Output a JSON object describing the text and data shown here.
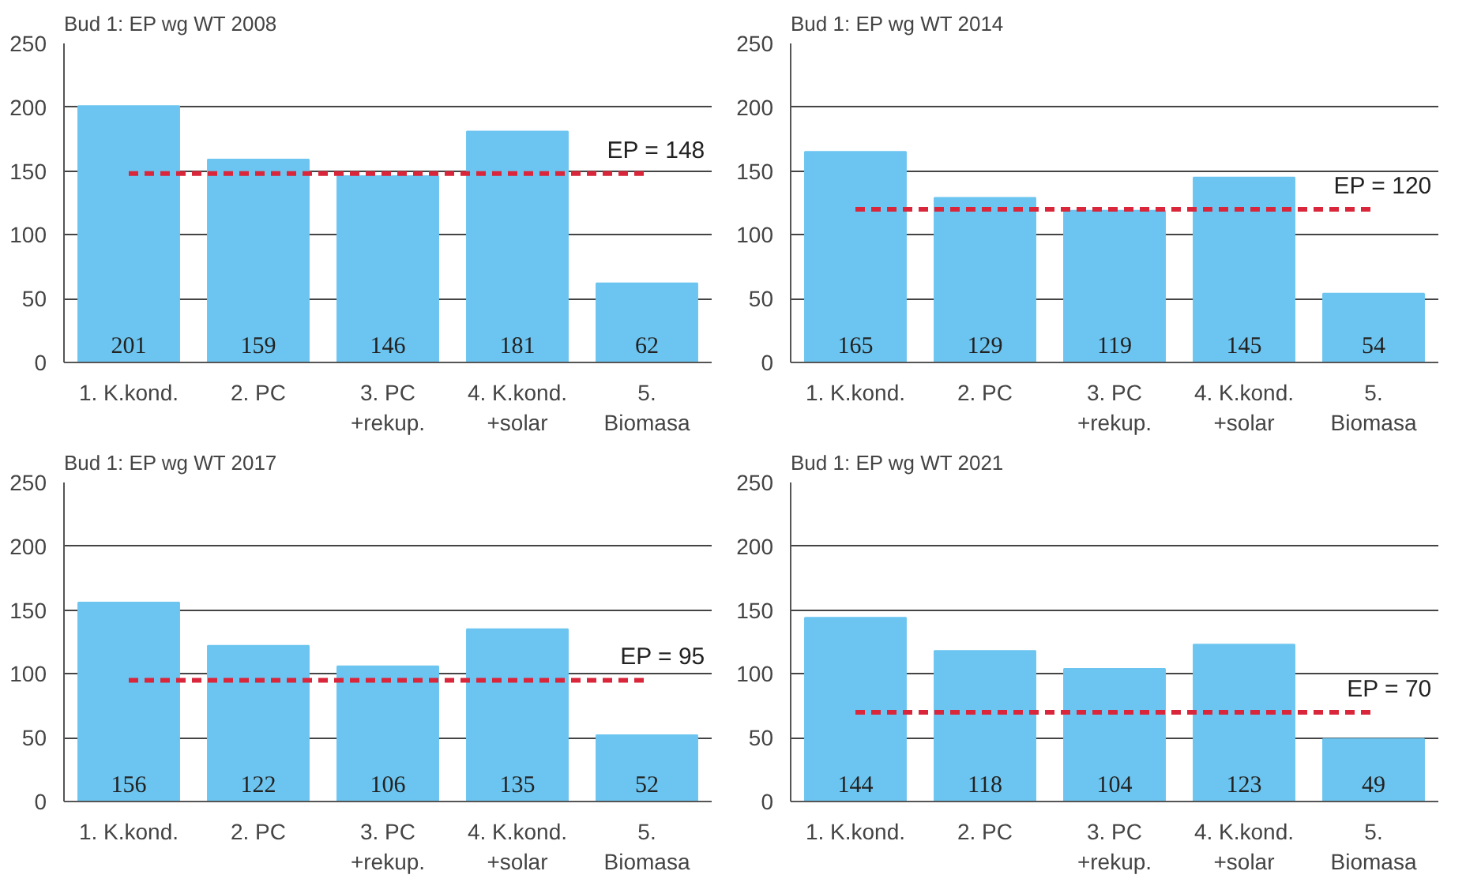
{
  "chart_data": [
    {
      "type": "bar",
      "title": "Bud 1: EP wg WT 2008",
      "categories": [
        "1. K.kond.",
        "2. PC",
        "3. PC\n+rekup.",
        "4. K.kond.\n+solar",
        "5.\nBiomasa"
      ],
      "values": [
        201,
        159,
        146,
        181,
        62
      ],
      "color": "#6cc5f0",
      "data_labels": true,
      "ylim": [
        0,
        250
      ],
      "yticks": [
        0,
        50,
        100,
        150,
        200,
        250
      ],
      "grid": "y",
      "ref_lines": [
        {
          "axis": "y",
          "value": 148,
          "label": "EP = 148",
          "color": "#d9263a",
          "line_style": "dashed"
        }
      ]
    },
    {
      "type": "bar",
      "title": "Bud 1: EP wg WT 2014",
      "categories": [
        "1. K.kond.",
        "2. PC",
        "3. PC\n+rekup.",
        "4. K.kond.\n+solar",
        "5.\nBiomasa"
      ],
      "values": [
        165,
        129,
        119,
        145,
        54
      ],
      "color": "#6cc5f0",
      "data_labels": true,
      "ylim": [
        0,
        250
      ],
      "yticks": [
        0,
        50,
        100,
        150,
        200,
        250
      ],
      "grid": "y",
      "ref_lines": [
        {
          "axis": "y",
          "value": 120,
          "label": "EP = 120",
          "color": "#d9263a",
          "line_style": "dashed"
        }
      ]
    },
    {
      "type": "bar",
      "title": "Bud 1: EP wg WT 2017",
      "categories": [
        "1. K.kond.",
        "2. PC",
        "3. PC\n+rekup.",
        "4. K.kond.\n+solar",
        "5.\nBiomasa"
      ],
      "values": [
        156,
        122,
        106,
        135,
        52
      ],
      "color": "#6cc5f0",
      "data_labels": true,
      "ylim": [
        0,
        250
      ],
      "yticks": [
        0,
        50,
        100,
        150,
        200,
        250
      ],
      "grid": "y",
      "ref_lines": [
        {
          "axis": "y",
          "value": 95,
          "label": "EP = 95",
          "color": "#d9263a",
          "line_style": "dashed"
        }
      ]
    },
    {
      "type": "bar",
      "title": "Bud 1: EP wg WT 2021",
      "categories": [
        "1. K.kond.",
        "2. PC",
        "3. PC\n+rekup.",
        "4. K.kond.\n+solar",
        "5.\nBiomasa"
      ],
      "values": [
        144,
        118,
        104,
        123,
        49
      ],
      "color": "#6cc5f0",
      "data_labels": true,
      "ylim": [
        0,
        250
      ],
      "yticks": [
        0,
        50,
        100,
        150,
        200,
        250
      ],
      "grid": "y",
      "ref_lines": [
        {
          "axis": "y",
          "value": 70,
          "label": "EP = 70",
          "color": "#d9263a",
          "line_style": "dashed"
        }
      ]
    }
  ]
}
